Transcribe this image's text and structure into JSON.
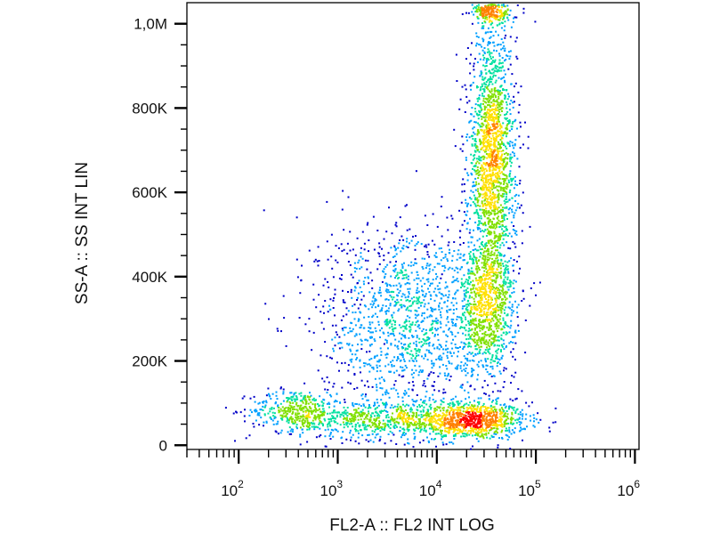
{
  "chart_data": {
    "type": "scatter",
    "title": "",
    "xlabel": "FL2-A :: FL2 INT LOG",
    "ylabel": "SS-A :: SS INT LIN",
    "x_scale": "log",
    "y_scale": "linear",
    "xlim": [
      30,
      1100000
    ],
    "ylim": [
      -10000,
      1050000
    ],
    "x_ticks": [
      {
        "base": "10",
        "exp": "2",
        "value": 100
      },
      {
        "base": "10",
        "exp": "3",
        "value": 1000
      },
      {
        "base": "10",
        "exp": "4",
        "value": 10000
      },
      {
        "base": "10",
        "exp": "5",
        "value": 100000
      },
      {
        "base": "10",
        "exp": "6",
        "value": 1000000
      }
    ],
    "y_ticks": [
      {
        "label": "0",
        "value": 0
      },
      {
        "label": "200K",
        "value": 200000
      },
      {
        "label": "400K",
        "value": 400000
      },
      {
        "label": "600K",
        "value": 600000
      },
      {
        "label": "800K",
        "value": 800000
      },
      {
        "label": "1,0M",
        "value": 1000000
      }
    ],
    "color_scale": [
      "#0000c8",
      "#00a0ff",
      "#00e0a0",
      "#80e000",
      "#ffe000",
      "#ff8000",
      "#ff0000"
    ],
    "populations": [
      {
        "x_log10_center": 4.35,
        "x_log10_sd": 0.28,
        "y_center": 60000,
        "y_sd": 22000,
        "points": 900,
        "peak_density": "high"
      },
      {
        "x_log10_center": 2.55,
        "x_log10_sd": 0.22,
        "y_center": 85000,
        "y_sd": 25000,
        "points": 350,
        "peak_density": "medium"
      },
      {
        "x_log10_center": 3.4,
        "x_log10_sd": 0.45,
        "y_center": 65000,
        "y_sd": 25000,
        "points": 700,
        "peak_density": "medium"
      },
      {
        "x_log10_center": 4.55,
        "x_log10_sd": 0.12,
        "y_center": 680000,
        "y_sd": 150000,
        "points": 1800,
        "peak_density": "high"
      },
      {
        "x_log10_center": 4.5,
        "x_log10_sd": 0.15,
        "y_center": 330000,
        "y_sd": 80000,
        "points": 900,
        "peak_density": "medium"
      },
      {
        "x_log10_center": 3.7,
        "x_log10_sd": 0.45,
        "y_center": 300000,
        "y_sd": 120000,
        "points": 1400,
        "peak_density": "low"
      },
      {
        "x_log10_center": 4.55,
        "x_log10_sd": 0.1,
        "y_center": 1030000,
        "y_sd": 15000,
        "points": 250,
        "peak_density": "high"
      }
    ]
  }
}
